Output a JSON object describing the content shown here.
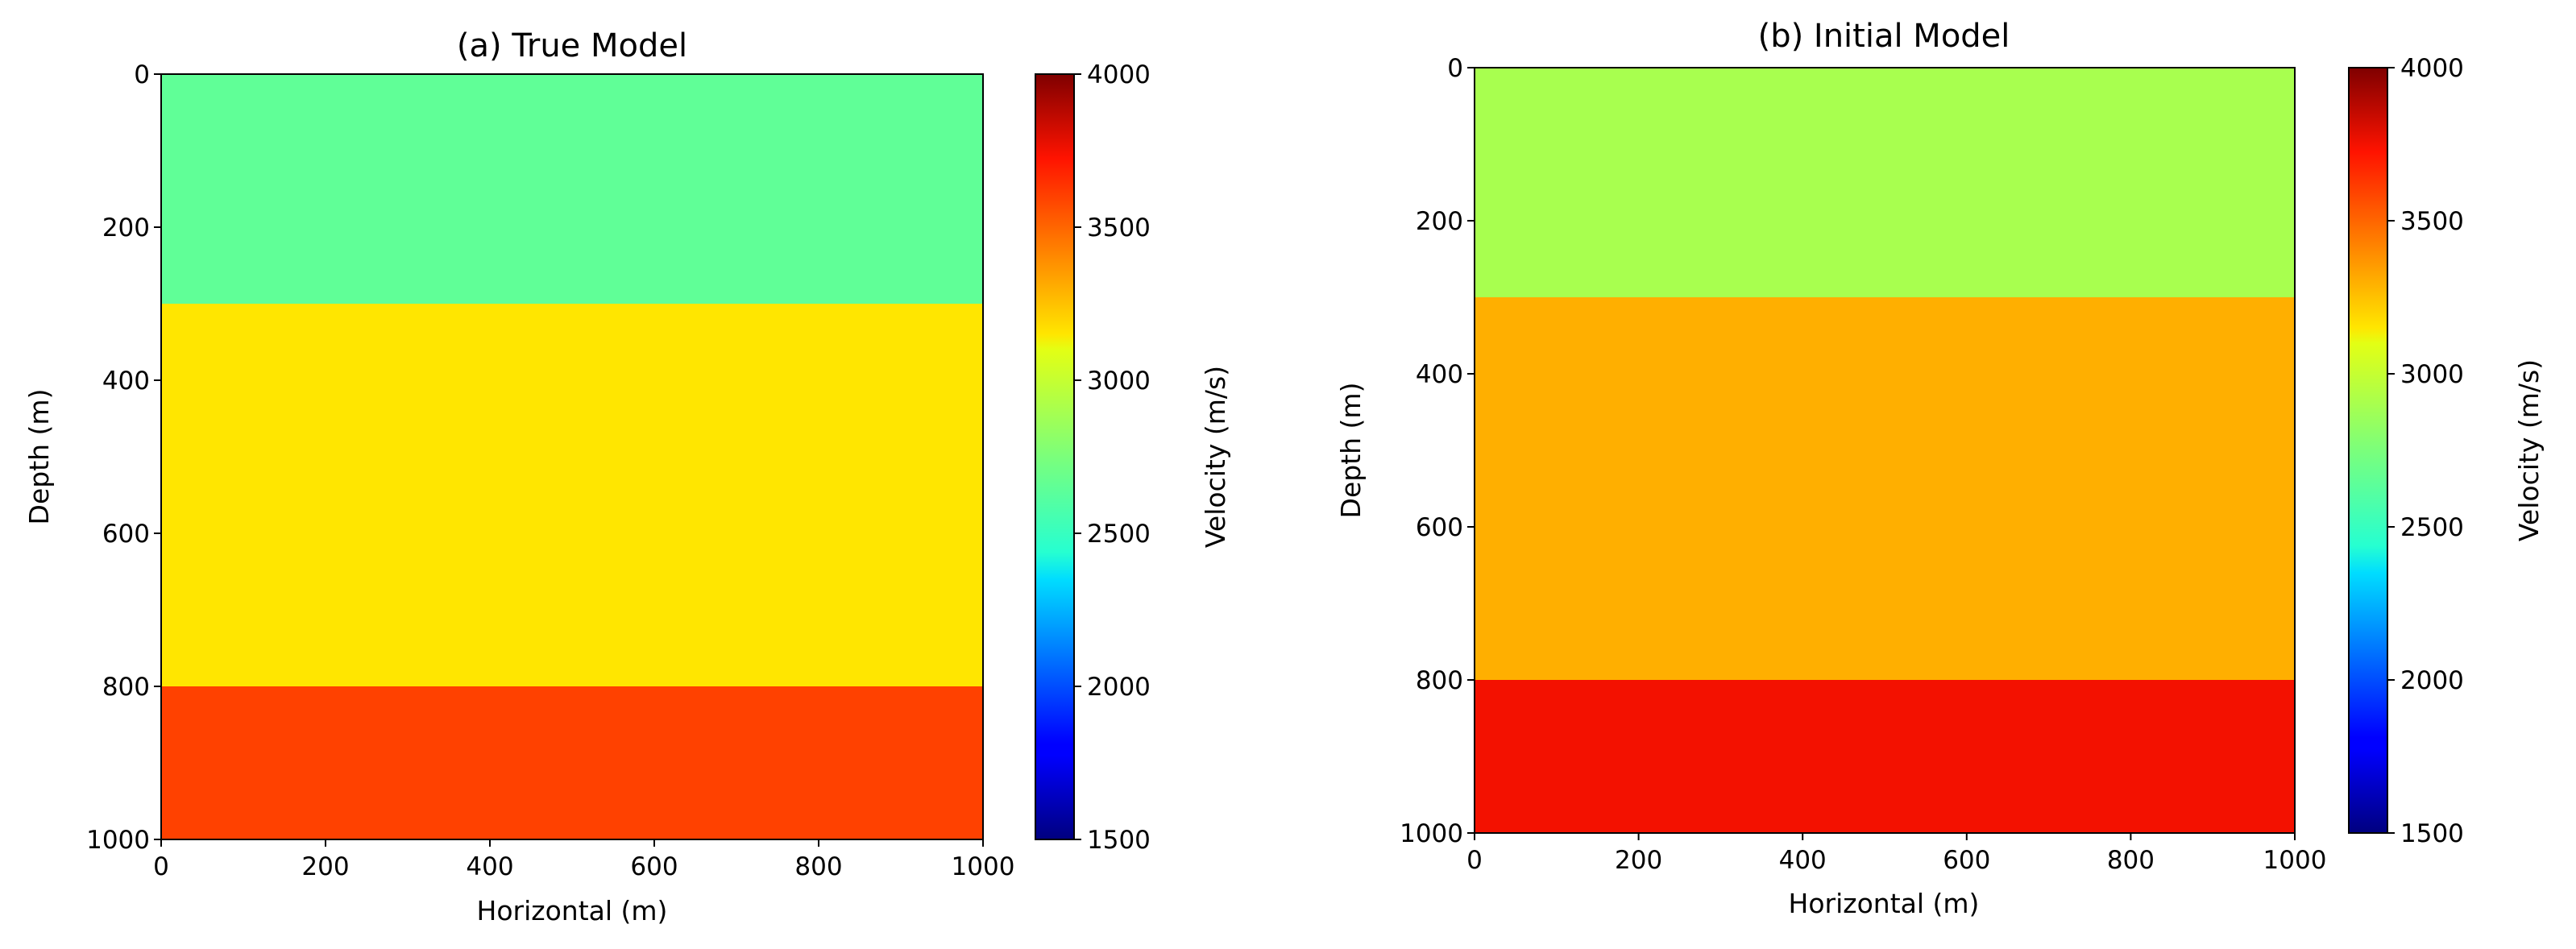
{
  "chart_data": [
    {
      "type": "heatmap",
      "title": "(a) True Model",
      "xlabel": "Horizontal (m)",
      "ylabel": "Depth (m)",
      "xlim": [
        0,
        1000
      ],
      "ylim": [
        1000,
        0
      ],
      "x_ticks": [
        0,
        200,
        400,
        600,
        800,
        1000
      ],
      "y_ticks": [
        0,
        200,
        400,
        600,
        800,
        1000
      ],
      "layers": [
        {
          "depth_top": 0,
          "depth_bottom": 300,
          "velocity": 2650
        },
        {
          "depth_top": 300,
          "depth_bottom": 800,
          "velocity": 3150
        },
        {
          "depth_top": 800,
          "depth_bottom": 1000,
          "velocity": 3600
        }
      ],
      "colorbar": {
        "label": "Velocity (m/s)",
        "colormap": "jet",
        "range": [
          1500,
          4000
        ],
        "ticks": [
          1500,
          2000,
          2500,
          3000,
          3500,
          4000
        ]
      }
    },
    {
      "type": "heatmap",
      "title": "(b) Initial Model",
      "xlabel": "Horizontal (m)",
      "ylabel": "Depth (m)",
      "xlim": [
        0,
        1000
      ],
      "ylim": [
        1000,
        0
      ],
      "x_ticks": [
        0,
        200,
        400,
        600,
        800,
        1000
      ],
      "y_ticks": [
        0,
        200,
        400,
        600,
        800,
        1000
      ],
      "layers": [
        {
          "depth_top": 0,
          "depth_bottom": 300,
          "velocity": 2900
        },
        {
          "depth_top": 300,
          "depth_bottom": 800,
          "velocity": 3300
        },
        {
          "depth_top": 800,
          "depth_bottom": 1000,
          "velocity": 3750
        }
      ],
      "colorbar": {
        "label": "Velocity (m/s)",
        "colormap": "jet",
        "range": [
          1500,
          4000
        ],
        "ticks": [
          1500,
          2000,
          2500,
          3000,
          3500,
          4000
        ]
      }
    }
  ]
}
